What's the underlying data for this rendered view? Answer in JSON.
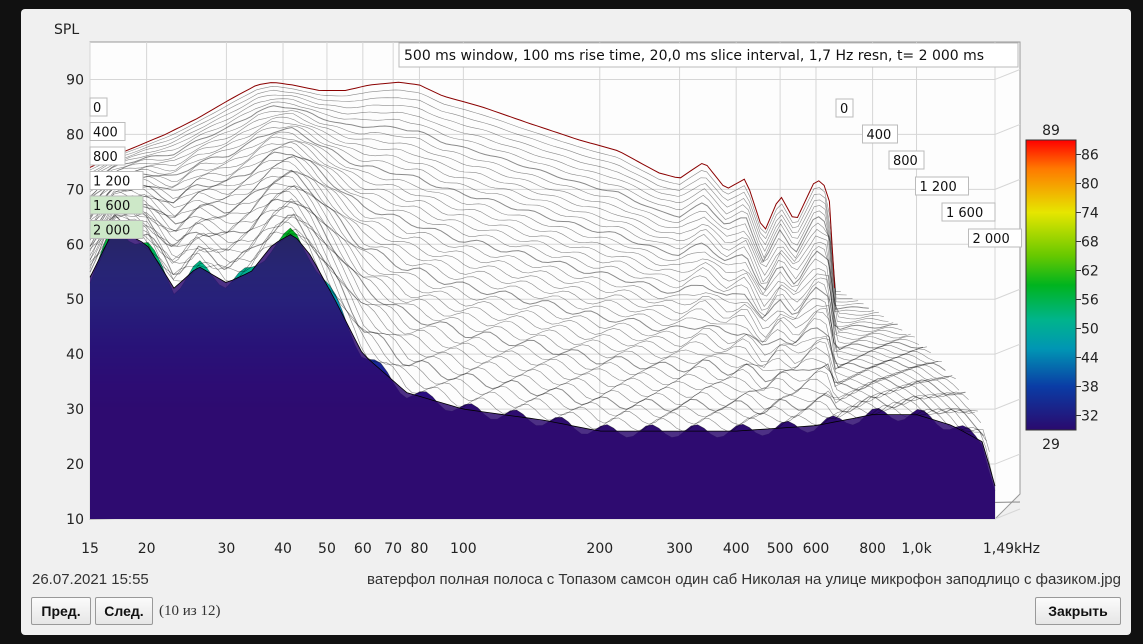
{
  "chart_data": {
    "type": "waterfall",
    "title": "500 ms window, 100 ms rise time, 20,0 ms slice interval, 1,7 Hz resn, t= 2 000 ms",
    "ylabel": "SPL",
    "ylim": [
      10,
      95
    ],
    "y_ticks": [
      10,
      20,
      30,
      40,
      50,
      60,
      70,
      80,
      90
    ],
    "x_ticks": [
      "15",
      "20",
      "30",
      "40",
      "50",
      "60",
      "70",
      "80",
      "100",
      "200",
      "300",
      "400",
      "500",
      "600",
      "800",
      "1,0k",
      "1,49kHz"
    ],
    "x_tick_values": [
      15,
      20,
      30,
      40,
      50,
      60,
      70,
      80,
      100,
      200,
      300,
      400,
      500,
      600,
      800,
      1000,
      1490
    ],
    "xlim": [
      15,
      1490
    ],
    "x_scale": "log",
    "time_labels_left": [
      "0",
      "400",
      "800",
      "1 200",
      "1 600",
      "2 000"
    ],
    "time_labels_right": [
      "0",
      "400",
      "800",
      "1 200",
      "1 600",
      "2 000"
    ],
    "time_values_ms": [
      0,
      400,
      800,
      1200,
      1600,
      2000
    ],
    "first_slice": {
      "freq": [
        15,
        18,
        22,
        26,
        30,
        35,
        38,
        42,
        48,
        55,
        62,
        72,
        80,
        90,
        110,
        140,
        180,
        220,
        270,
        300,
        340,
        380,
        420,
        460,
        500,
        540,
        600,
        640,
        660
      ],
      "spl": [
        74,
        77,
        80,
        83,
        86,
        89,
        89.5,
        89,
        88,
        88,
        89,
        89.5,
        89,
        87,
        85,
        82,
        79,
        77,
        73,
        72,
        75,
        70,
        72,
        62,
        69,
        64,
        72,
        70,
        52
      ]
    },
    "last_slice": {
      "freq": [
        15,
        17,
        20,
        23,
        26,
        30,
        34,
        38,
        42,
        46,
        52,
        60,
        75,
        100,
        150,
        200,
        300,
        400,
        600,
        800,
        1000,
        1200,
        1400,
        1490
      ],
      "spl": [
        54,
        63,
        60,
        52,
        56,
        53,
        55,
        60,
        62,
        58,
        50,
        40,
        33,
        30,
        28,
        26,
        26,
        26,
        27,
        29,
        29,
        27,
        24,
        16
      ]
    },
    "colorbar": {
      "max_label": "89",
      "min_label": "29",
      "ticks": [
        "86",
        "80",
        "74",
        "68",
        "62",
        "56",
        "50",
        "44",
        "38",
        "32"
      ],
      "colors": [
        "#ff0000",
        "#ff7a00",
        "#e6e600",
        "#7acc00",
        "#00b400",
        "#00b478",
        "#0096b4",
        "#0a3ca0",
        "#280a80",
        "#2a0a6e"
      ]
    },
    "legend": "right"
  },
  "footer": {
    "date": "26.07.2021 15:55",
    "filename": "ватерфол полная полоса с Топазом самсон один саб Николая на улице микрофон заподлицо с фазиком.jpg",
    "counter": "(10 из 12)"
  },
  "buttons": {
    "prev": "Пред.",
    "next": "След.",
    "close": "Закрыть"
  }
}
